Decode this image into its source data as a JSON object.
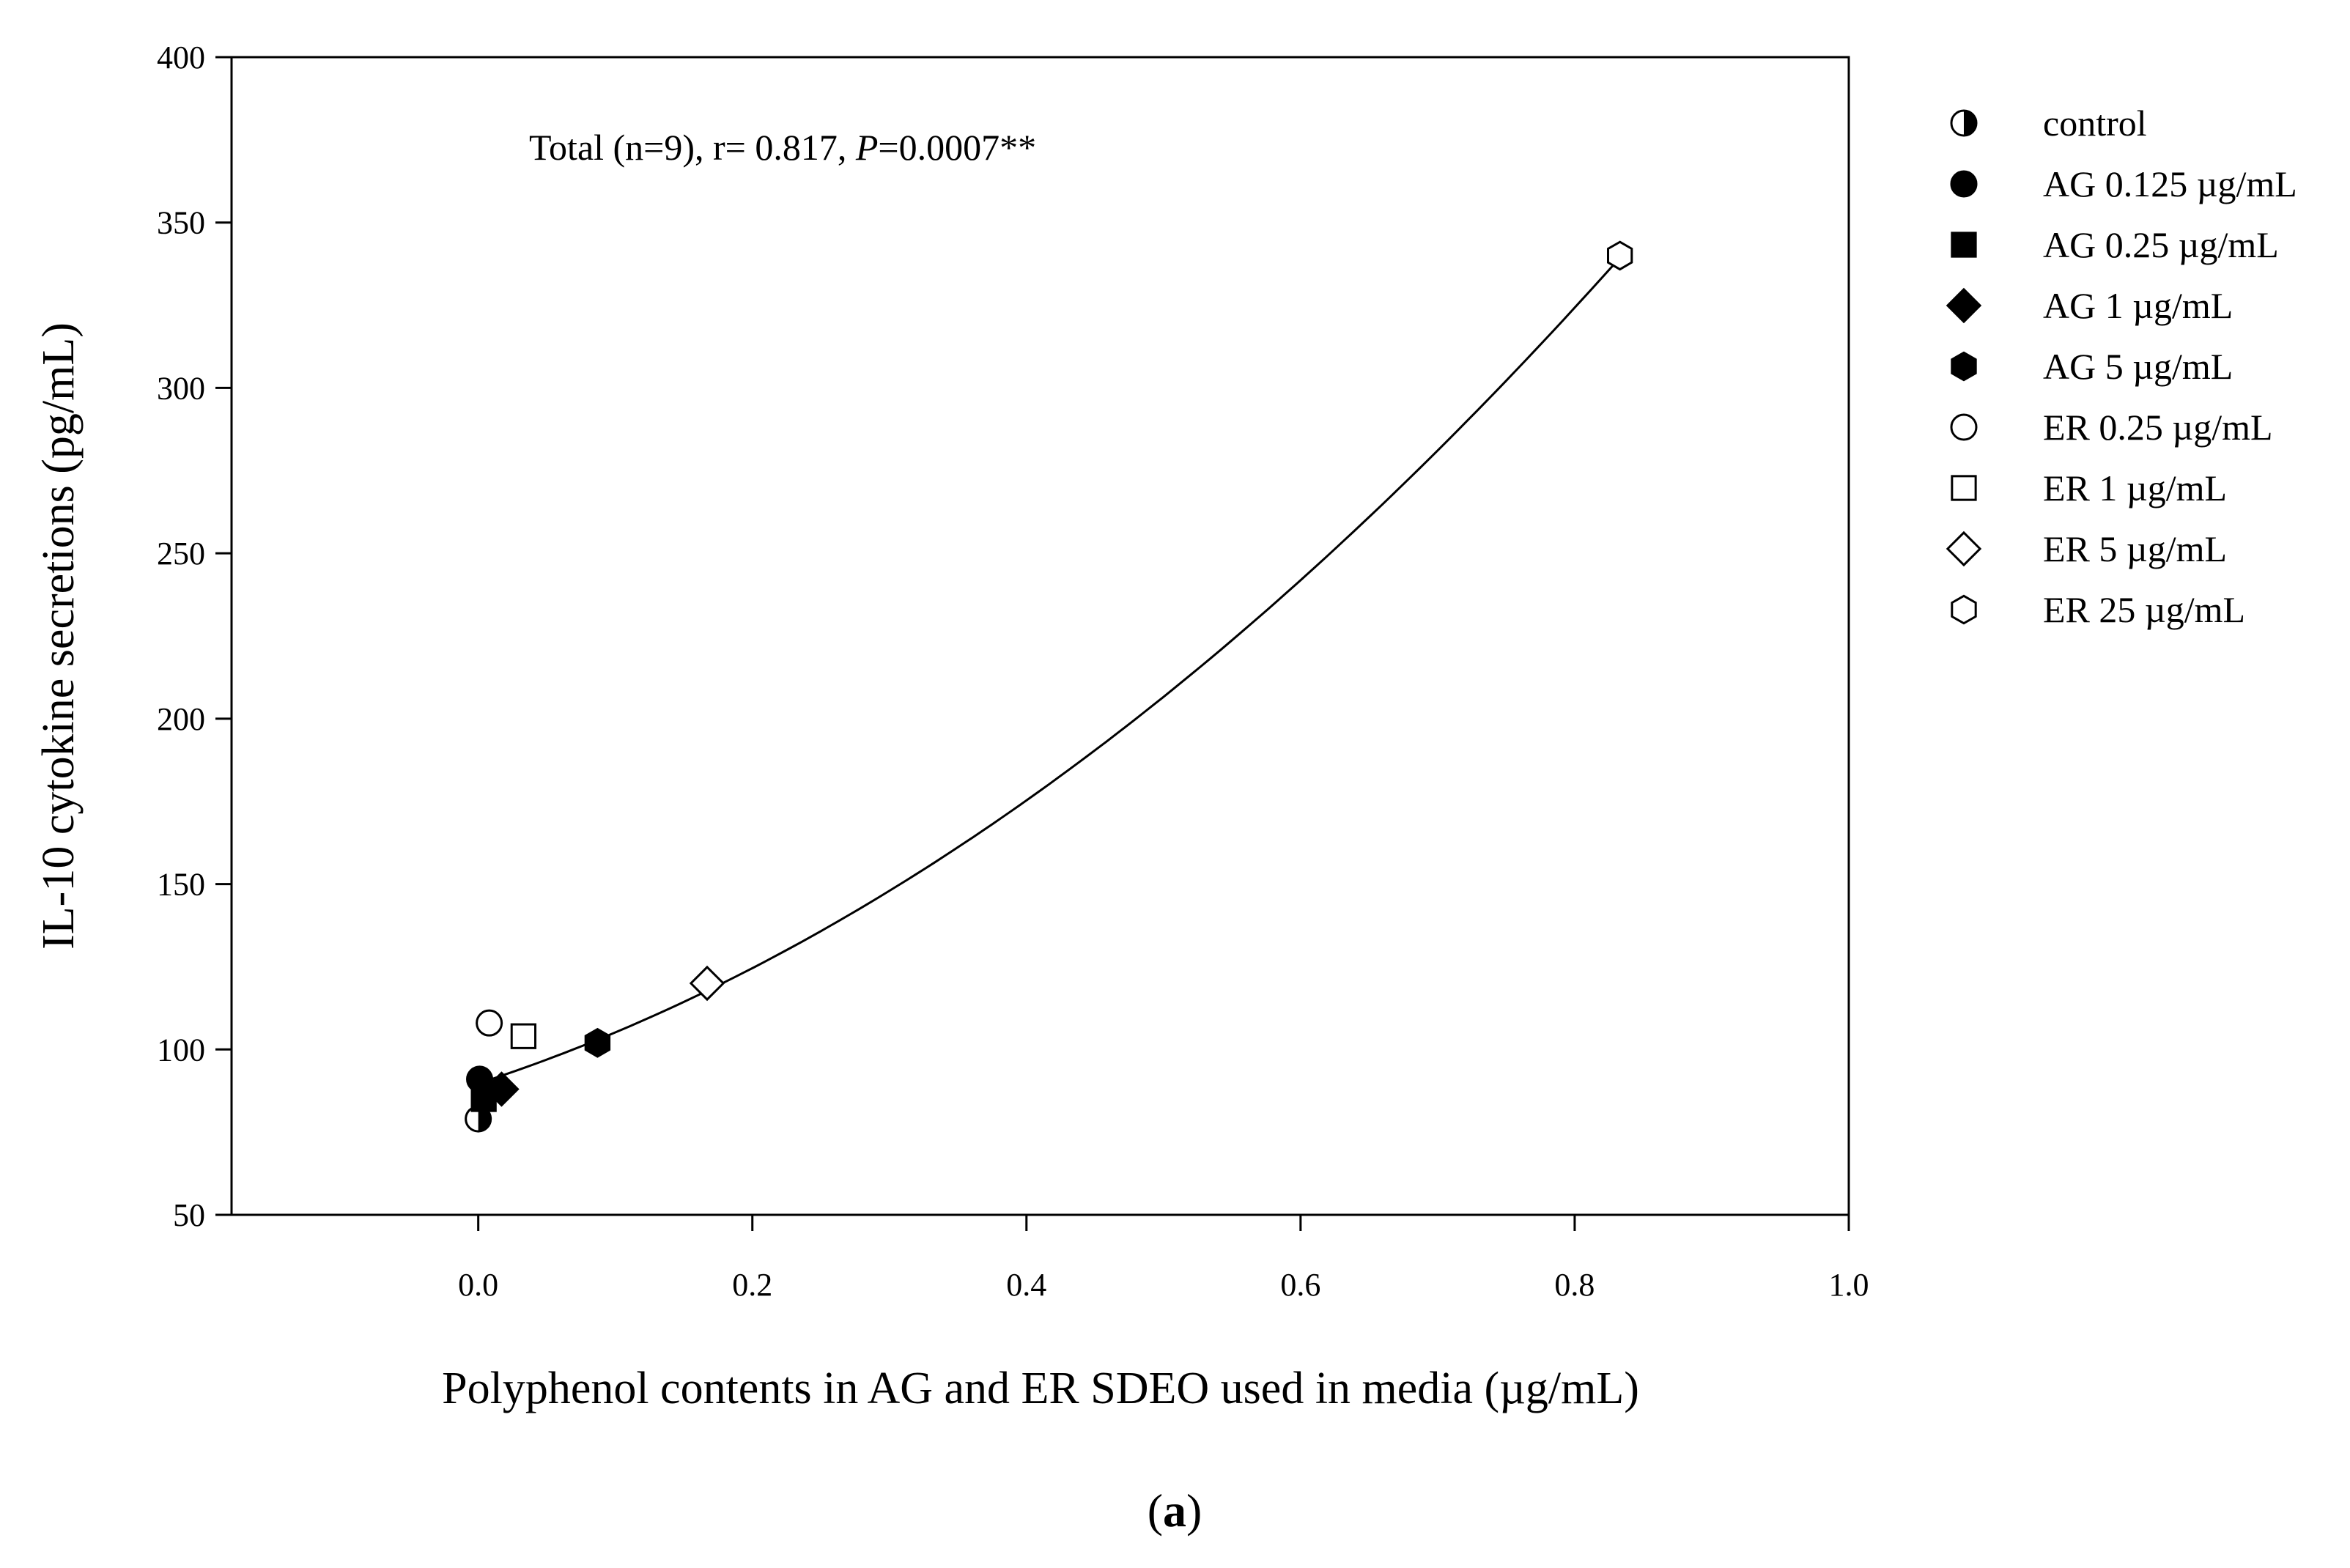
{
  "chart_data": {
    "type": "scatter",
    "xlabel": "Polyphenol contents in AG and ER SDEO used in media (µg/mL)",
    "ylabel": "IL-10 cytokine secretions (pg/mL)",
    "xlim": [
      -0.18,
      1.0
    ],
    "ylim": [
      50,
      400
    ],
    "x_ticks": [
      "0.0",
      "0.2",
      "0.4",
      "0.6",
      "0.8",
      "1.0"
    ],
    "y_ticks": [
      "50",
      "100",
      "150",
      "200",
      "250",
      "300",
      "350",
      "400"
    ],
    "grid": false,
    "legend_position": "right",
    "annotation": {
      "prefix": "Total (n=9), r= 0.817, ",
      "italic": "P",
      "suffix": "=0.0007**"
    },
    "panel_label": "(a)",
    "series": [
      {
        "name": "control",
        "marker": "half-circle",
        "x": [
          0.0
        ],
        "y": [
          79
        ]
      },
      {
        "name": "AG 0.125 µg/mL",
        "marker": "filled-circle",
        "x": [
          0.001
        ],
        "y": [
          91
        ]
      },
      {
        "name": "AG 0.25 µg/mL",
        "marker": "filled-square",
        "x": [
          0.004
        ],
        "y": [
          85
        ]
      },
      {
        "name": "AG 1 µg/mL",
        "marker": "filled-diamond",
        "x": [
          0.017
        ],
        "y": [
          88
        ]
      },
      {
        "name": "AG 5 µg/mL",
        "marker": "filled-hexagon",
        "x": [
          0.087
        ],
        "y": [
          102
        ]
      },
      {
        "name": "ER 0.25 µg/mL",
        "marker": "open-circle",
        "x": [
          0.008
        ],
        "y": [
          108
        ]
      },
      {
        "name": "ER 1 µg/mL",
        "marker": "open-square",
        "x": [
          0.033
        ],
        "y": [
          104
        ]
      },
      {
        "name": "ER 5 µg/mL",
        "marker": "open-diamond",
        "x": [
          0.167
        ],
        "y": [
          120
        ]
      },
      {
        "name": "ER 25 µg/mL",
        "marker": "open-hexagon",
        "x": [
          0.833
        ],
        "y": [
          340
        ]
      }
    ],
    "fit_curve": {
      "x_range": [
        0.0,
        0.833
      ],
      "coefficients": [
        89.7,
        134.8,
        198.0
      ]
    }
  }
}
